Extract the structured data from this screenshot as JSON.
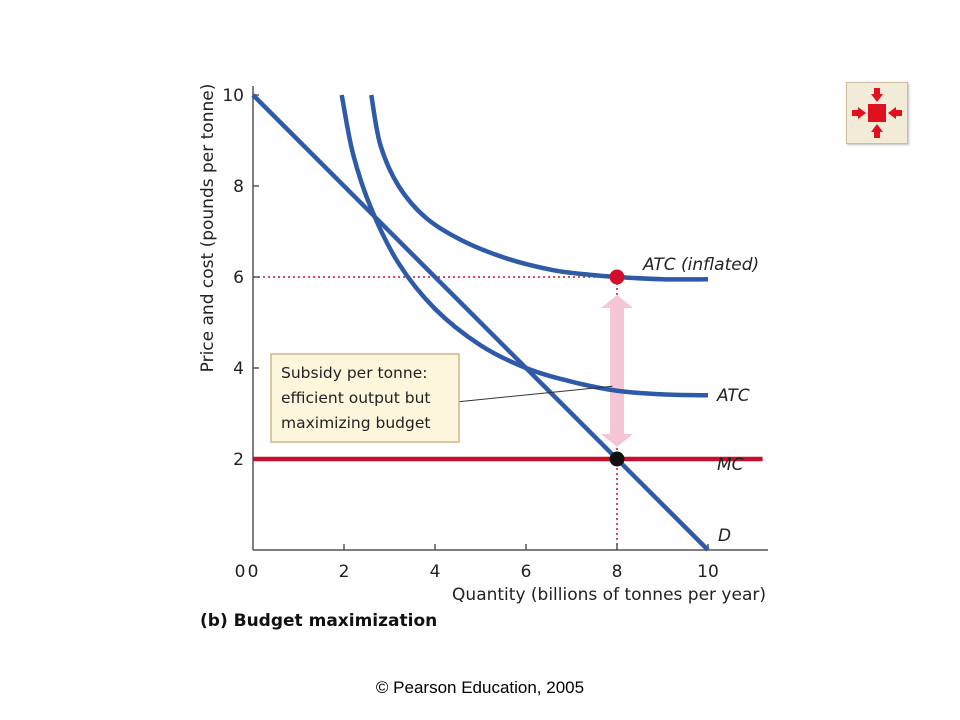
{
  "chart_data": {
    "type": "line",
    "ylabel": "Price and cost (pounds per tonne)",
    "xlabel": "Quantity (billions of tonnes per year)",
    "xlim": [
      0,
      11.3
    ],
    "ylim": [
      0,
      10
    ],
    "x_ticks": [
      0,
      2,
      4,
      6,
      8,
      10
    ],
    "y_ticks": [
      0,
      2,
      4,
      6,
      8,
      10
    ],
    "highlighted_tick": 8,
    "highlighted_y_tick": 6,
    "series": [
      {
        "name": "D",
        "color": "#2e5aa8",
        "x": [
          0,
          10
        ],
        "y": [
          10,
          0
        ]
      },
      {
        "name": "MC",
        "color": "#c8102e",
        "x": [
          0,
          11.2
        ],
        "y": [
          2,
          2
        ]
      },
      {
        "name": "ATC",
        "color": "#2e5aa8",
        "x": [
          1.95,
          2.2,
          2.6,
          3.2,
          4.0,
          5.0,
          6.0,
          7.0,
          8.0,
          9.0,
          10.0
        ],
        "y": [
          10.0,
          8.7,
          7.5,
          6.3,
          5.3,
          4.5,
          4.0,
          3.7,
          3.5,
          3.42,
          3.4
        ]
      },
      {
        "name": "ATC (inflated)",
        "color": "#2e5aa8",
        "x": [
          2.6,
          2.8,
          3.2,
          3.8,
          4.6,
          5.6,
          6.6,
          7.4,
          8.0,
          9.0,
          10.0
        ],
        "y": [
          10.0,
          8.9,
          8.0,
          7.3,
          6.8,
          6.4,
          6.15,
          6.05,
          6.0,
          5.95,
          5.95
        ]
      }
    ],
    "points": [
      {
        "x": 8,
        "y": 6,
        "color": "#d0102a"
      },
      {
        "x": 8,
        "y": 2,
        "color": "#111111"
      }
    ],
    "guides": [
      {
        "from": [
          0,
          6
        ],
        "to": [
          8,
          6
        ],
        "color": "#c8102e"
      },
      {
        "from": [
          8,
          0
        ],
        "to": [
          8,
          6
        ],
        "color": "#c8102e"
      }
    ],
    "subsidy_arrow": {
      "x": 8,
      "y_low": 2,
      "y_high": 6,
      "color": "#f4c6d6"
    },
    "annotation": {
      "lines": [
        "Subsidy per tonne:",
        "efficient output but",
        "maximizing budget"
      ],
      "box_fill": "#fdf5dc",
      "box_stroke": "#c9b98a",
      "pointer_to": [
        7.9,
        3.6
      ]
    },
    "curve_labels": [
      "ATC (inflated)",
      "ATC",
      "MC",
      "D"
    ],
    "caption": "(b) Budget maximization"
  },
  "nav": {
    "icon": "expand-arrows-icon",
    "icon_color": "#e0101f"
  },
  "footer": {
    "copyright": "© Pearson Education, 2005"
  }
}
